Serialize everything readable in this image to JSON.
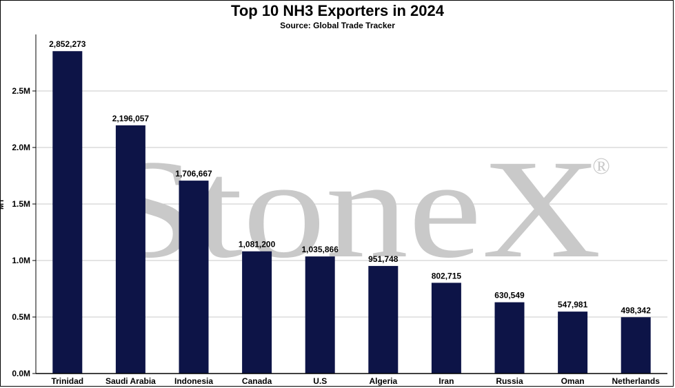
{
  "header": {
    "title": "Top 10 NH3 Exporters in 2024",
    "subtitle": "Source: Global Trade Tracker"
  },
  "watermark": {
    "text": "StoneX",
    "mark": "®"
  },
  "chart_data": {
    "type": "bar",
    "title": "Top 10 NH3 Exporters in 2024",
    "subtitle": "Source: Global Trade Tracker",
    "ylabel": "MT",
    "xlabel": "",
    "categories": [
      "Trinidad",
      "Saudi Arabia",
      "Indonesia",
      "Canada",
      "U.S",
      "Algeria",
      "Iran",
      "Russia",
      "Oman",
      "Netherlands"
    ],
    "values": [
      2852273,
      2196057,
      1706667,
      1081200,
      1035866,
      951748,
      802715,
      630549,
      547981,
      498342
    ],
    "data_labels": [
      "2,852,273",
      "2,196,057",
      "1,706,667",
      "1,081,200",
      "1,035,866",
      "951,748",
      "802,715",
      "630,549",
      "547,981",
      "498,342"
    ],
    "yticks": [
      0,
      500000,
      1000000,
      1500000,
      2000000,
      2500000
    ],
    "ytick_labels": [
      "0.0M",
      "0.5M",
      "1.0M",
      "1.5M",
      "2.0M",
      "2.5M"
    ],
    "ylim": [
      0,
      3000000
    ],
    "grid": true,
    "legend": "none",
    "colors": {
      "bar": "#0d1447",
      "grid": "#c8c8c8",
      "axis": "#000000"
    }
  }
}
